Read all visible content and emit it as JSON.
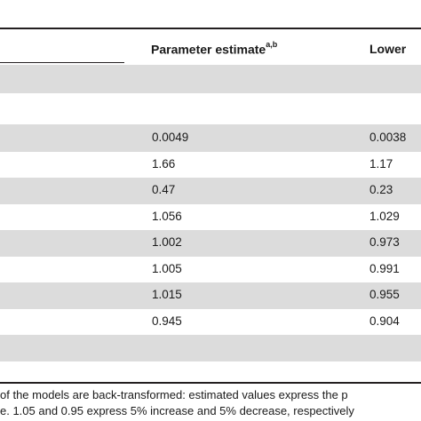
{
  "table": {
    "columns": {
      "estimate": "Parameter estimate",
      "estimate_sup": "a,b",
      "lower": "Lower"
    },
    "rows": [
      {
        "estimate": "0.0049",
        "lower": "0.0038"
      },
      {
        "estimate": "1.66",
        "lower": "1.17"
      },
      {
        "estimate": "0.47",
        "lower": "0.23"
      },
      {
        "estimate": "1.056",
        "lower": "1.029"
      },
      {
        "estimate": "1.002",
        "lower": "0.973"
      },
      {
        "estimate": "1.005",
        "lower": "0.991"
      },
      {
        "estimate": "1.015",
        "lower": "0.955"
      },
      {
        "estimate": "0.945",
        "lower": "0.904"
      }
    ]
  },
  "footnotes": {
    "line1": "of the models are back-transformed: estimated values express the p",
    "line2": "e. 1.05 and 0.95 express 5% increase and 5% decrease, respectively"
  }
}
